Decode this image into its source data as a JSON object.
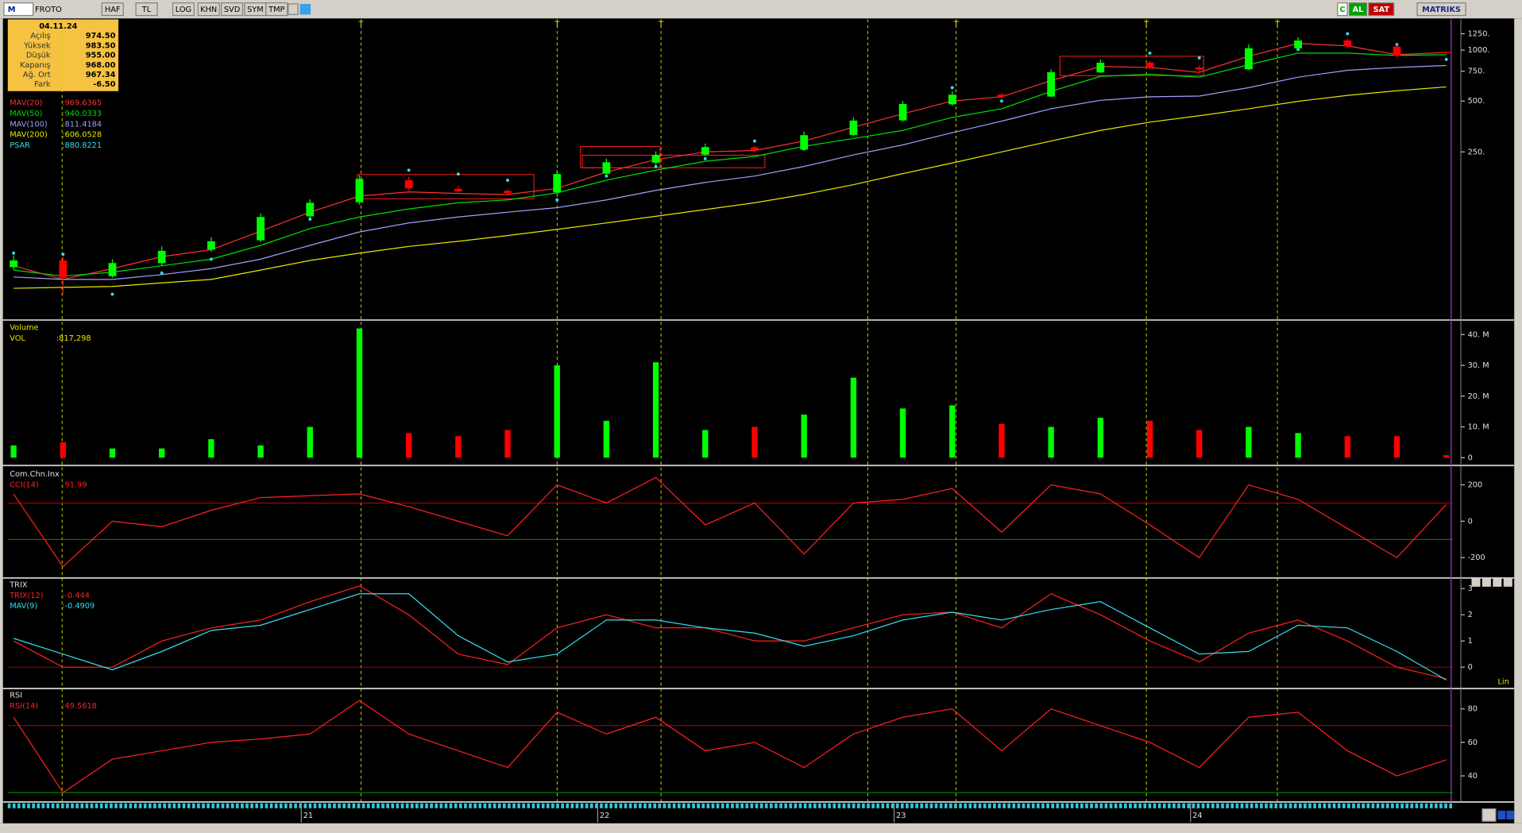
{
  "toolbar": {
    "logo": "M",
    "symbol": "FROTO",
    "buttons": [
      "HAF",
      "TL",
      "LOG",
      "KHN",
      "SVD",
      "SYM",
      "TMP"
    ],
    "right": [
      "C",
      "AL",
      "SAT",
      "MATRIKS"
    ]
  },
  "info_box": {
    "date": "04.11.24",
    "rows": [
      [
        "Açılış",
        "974.50"
      ],
      [
        "Yüksek",
        "983.50"
      ],
      [
        "Düşük",
        "955.00"
      ],
      [
        "Kapanış",
        "968.00"
      ],
      [
        "Ağ. Ort",
        "967.34"
      ],
      [
        "Fark",
        "-6.50"
      ]
    ]
  },
  "event_marker": "T",
  "x_axis": {
    "categories": [
      null,
      null,
      null,
      null,
      null,
      null,
      "21",
      null,
      null,
      null,
      null,
      null,
      "22",
      null,
      null,
      null,
      null,
      null,
      "23",
      null,
      null,
      null,
      null,
      null,
      "24",
      null,
      null,
      null,
      null,
      null
    ]
  },
  "price": {
    "type": "candlestick",
    "log": true,
    "ylim": [
      26,
      1520
    ],
    "yticks": [
      {
        "value": 1250,
        "label": "1250."
      },
      {
        "value": 1000,
        "label": "1000."
      },
      {
        "value": 750,
        "label": "750."
      },
      {
        "value": 500,
        "label": "500."
      },
      {
        "value": 250,
        "label": "250."
      }
    ],
    "up_color": "#00ff00",
    "down_color": "#ff0000",
    "open": [
      52,
      57,
      46,
      55,
      66,
      75,
      104,
      126,
      170,
      151,
      147,
      144,
      186,
      216,
      241,
      266,
      258,
      315,
      384,
      478,
      546,
      531,
      738,
      845,
      790,
      770,
      1025,
      1142,
      1050,
      974.5
    ],
    "high": [
      61,
      60,
      58,
      69,
      78,
      108,
      131,
      182,
      178,
      158,
      151,
      195,
      228,
      252,
      280,
      272,
      330,
      400,
      500,
      570,
      560,
      770,
      880,
      860,
      810,
      1080,
      1195,
      1160,
      1065,
      983.5
    ],
    "low": [
      50,
      36,
      45,
      53,
      64,
      73,
      102,
      122,
      148,
      141,
      138,
      141,
      182,
      210,
      236,
      248,
      255,
      310,
      378,
      470,
      505,
      528,
      730,
      770,
      740,
      762,
      1010,
      1030,
      905,
      955
    ],
    "close": [
      57,
      45,
      55,
      65,
      74,
      103,
      125,
      173,
      152,
      146,
      143,
      185,
      217,
      240,
      267,
      257,
      314,
      383,
      480,
      545,
      532,
      740,
      843,
      789,
      768,
      1027,
      1140,
      1053,
      924,
      968
    ],
    "overlays": [
      {
        "name": "MAV(20)",
        "readout": ":969.6365",
        "color": "#ff3030",
        "values": [
          53,
          44,
          51,
          60,
          66,
          85,
          110,
          137,
          145,
          142,
          140,
          152,
          190,
          225,
          250,
          255,
          290,
          350,
          420,
          500,
          530,
          660,
          800,
          790,
          739,
          920,
          1096,
          1060,
          940,
          969.6365
        ]
      },
      {
        "name": "MAV(50)",
        "readout": ":940.0333",
        "color": "#00dd00",
        "values": [
          50,
          46,
          48.6,
          53,
          58,
          70,
          88,
          103,
          115,
          125,
          130,
          143,
          170,
          195,
          220,
          235,
          270,
          300,
          335,
          400,
          450,
          570,
          700,
          720,
          692,
          820,
          961,
          960,
          930,
          940.0333
        ]
      },
      {
        "name": "MAV(100)",
        "readout": ":811.4184",
        "color": "#a0a0ff",
        "values": [
          45.5,
          44,
          44,
          47,
          51,
          58,
          70,
          84,
          95,
          103,
          110,
          117,
          130,
          148,
          165,
          180,
          205,
          240,
          275,
          325,
          380,
          450,
          505,
          530,
          535,
          600,
          692,
          760,
          790,
          811.4184
        ]
      },
      {
        "name": "MAV(200)",
        "readout": ":606.0528",
        "color": "#e8e800",
        "values": [
          39,
          39.5,
          40,
          42,
          44,
          50,
          57,
          63,
          69,
          74,
          80,
          87,
          95,
          104,
          114,
          125,
          140,
          160,
          186,
          215,
          250,
          290,
          335,
          375,
          409,
          450,
          498,
          540,
          575,
          606.0528
        ]
      },
      {
        "name": "PSAR",
        "readout": ":880.8221",
        "color": "#33ddee",
        "style": "dots",
        "values": [
          63,
          62,
          36,
          48,
          58,
          78,
          100,
          132,
          195,
          185,
          170,
          130,
          180,
          205,
          228,
          290,
          260,
          330,
          420,
          600,
          500,
          640,
          780,
          960,
          900,
          820,
          1010,
          1250,
          1080,
          880.8221
        ]
      }
    ]
  },
  "volume": {
    "type": "bar",
    "title": "Volume",
    "series_name": "VOL",
    "readout": ":817,298",
    "ylim": [
      -1900000,
      43800000
    ],
    "yticks": [
      {
        "value": 40000000,
        "label": "40. M"
      },
      {
        "value": 30000000,
        "label": "30. M"
      },
      {
        "value": 20000000,
        "label": "20. M"
      },
      {
        "value": 10000000,
        "label": "10. M"
      },
      0
    ],
    "values": [
      4000000,
      5000000,
      3000000,
      3000000,
      6000000,
      4000000,
      10000000,
      42000000,
      8000000,
      7000000,
      9000000,
      30000000,
      12000000,
      31000000,
      9000000,
      10000000,
      14000000,
      26000000,
      16000000,
      17000000,
      11000000,
      10000000,
      13000000,
      12000000,
      9000000,
      10000000,
      8000000,
      7000000,
      7000000,
      817298
    ]
  },
  "cci": {
    "type": "line",
    "title": "Com.Chn.Inx",
    "ylim": [
      -301,
      285
    ],
    "yticks": [
      200,
      0,
      -200
    ],
    "levels": [
      {
        "value": 100,
        "color": "#c00000"
      },
      {
        "value": -100,
        "color": "#00a000"
      }
    ],
    "series": [
      {
        "name": "CCI(14)",
        "readout": ":91.99",
        "color": "#ff2020",
        "values": [
          150,
          -250,
          0,
          -30,
          60,
          130,
          140,
          150,
          80,
          0,
          -80,
          200,
          100,
          240,
          -20,
          100,
          -180,
          100,
          120,
          180,
          -60,
          200,
          150,
          -20,
          -200,
          200,
          120,
          -40,
          -200,
          91.99
        ]
      }
    ]
  },
  "trix": {
    "type": "line",
    "title": "TRIX",
    "scale_label": "Lin",
    "ylim": [
      -0.74,
      3.33
    ],
    "yticks": [
      3,
      2,
      1,
      0
    ],
    "levels": [
      {
        "value": 0,
        "color": "#c00000"
      }
    ],
    "series": [
      {
        "name": "TRIX(12)",
        "readout": ":-0.444",
        "color": "#ff2020",
        "values": [
          1.0,
          0.0,
          0.0,
          1.0,
          1.5,
          1.8,
          2.5,
          3.1,
          2.0,
          0.5,
          0.1,
          1.5,
          2.0,
          1.5,
          1.5,
          1.0,
          1.0,
          1.5,
          2.0,
          2.1,
          1.5,
          2.8,
          2.0,
          1.0,
          0.2,
          1.3,
          1.8,
          1.0,
          0.0,
          -0.444
        ]
      },
      {
        "name": "MAV(9)",
        "readout": ":-0.4909",
        "color": "#33ddee",
        "values": [
          1.1,
          0.5,
          -0.1,
          0.6,
          1.4,
          1.6,
          2.2,
          2.8,
          2.8,
          1.2,
          0.2,
          0.5,
          1.8,
          1.8,
          1.5,
          1.3,
          0.8,
          1.2,
          1.8,
          2.1,
          1.8,
          2.2,
          2.5,
          1.5,
          0.5,
          0.6,
          1.6,
          1.5,
          0.6,
          -0.4909
        ]
      }
    ]
  },
  "rsi": {
    "type": "line",
    "title": "RSI",
    "ylim": [
      25,
      91
    ],
    "yticks": [
      80,
      60,
      40
    ],
    "levels": [
      {
        "value": 70,
        "color": "#c00000"
      },
      {
        "value": 30,
        "color": "#00a000"
      }
    ],
    "series": [
      {
        "name": "RSI(14)",
        "readout": ":49.5618",
        "color": "#ff2020",
        "values": [
          75,
          30,
          50,
          55,
          60,
          62,
          65,
          85,
          65,
          55,
          45,
          78,
          65,
          75,
          55,
          60,
          45,
          65,
          75,
          80,
          55,
          80,
          70,
          60,
          45,
          75,
          78,
          55,
          40,
          49.5618
        ]
      }
    ]
  }
}
